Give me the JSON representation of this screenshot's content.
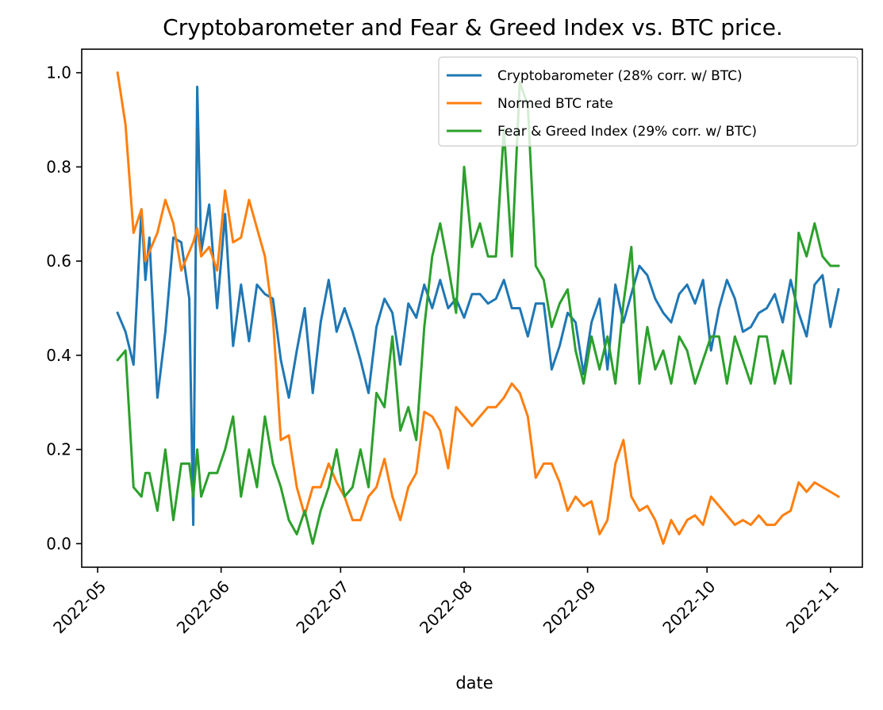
{
  "chart_data": {
    "type": "line",
    "title": "Cryptobarometer and Fear & Greed Index vs. BTC price.",
    "xlabel": "date",
    "ylabel": "",
    "xlim": [
      "2022-04-27",
      "2022-11-09"
    ],
    "ylim": [
      -0.05,
      1.05
    ],
    "grid": false,
    "legend_position": "upper right",
    "x_ticks": [
      "2022-05-01",
      "2022-06-01",
      "2022-07-01",
      "2022-08-01",
      "2022-09-01",
      "2022-10-01",
      "2022-11-01"
    ],
    "x_tick_labels": [
      "2022-05",
      "2022-06",
      "2022-07",
      "2022-08",
      "2022-09",
      "2022-10",
      "2022-11"
    ],
    "y_ticks": [
      0.0,
      0.2,
      0.4,
      0.6,
      0.8,
      1.0
    ],
    "y_tick_labels": [
      "0.0",
      "0.2",
      "0.4",
      "0.6",
      "0.8",
      "1.0"
    ],
    "series": [
      {
        "name": "Cryptobarometer (28% corr. w/ BTC)",
        "color": "#1f77b4",
        "x": [
          "2022-05-06",
          "2022-05-08",
          "2022-05-10",
          "2022-05-12",
          "2022-05-13",
          "2022-05-14",
          "2022-05-16",
          "2022-05-18",
          "2022-05-20",
          "2022-05-22",
          "2022-05-24",
          "2022-05-25",
          "2022-05-26",
          "2022-05-27",
          "2022-05-29",
          "2022-05-31",
          "2022-06-02",
          "2022-06-04",
          "2022-06-06",
          "2022-06-08",
          "2022-06-10",
          "2022-06-12",
          "2022-06-14",
          "2022-06-16",
          "2022-06-18",
          "2022-06-20",
          "2022-06-22",
          "2022-06-24",
          "2022-06-26",
          "2022-06-28",
          "2022-06-30",
          "2022-07-02",
          "2022-07-04",
          "2022-07-06",
          "2022-07-08",
          "2022-07-10",
          "2022-07-12",
          "2022-07-14",
          "2022-07-16",
          "2022-07-18",
          "2022-07-20",
          "2022-07-22",
          "2022-07-24",
          "2022-07-26",
          "2022-07-28",
          "2022-07-30",
          "2022-08-01",
          "2022-08-03",
          "2022-08-05",
          "2022-08-07",
          "2022-08-09",
          "2022-08-11",
          "2022-08-13",
          "2022-08-15",
          "2022-08-17",
          "2022-08-19",
          "2022-08-21",
          "2022-08-23",
          "2022-08-25",
          "2022-08-27",
          "2022-08-29",
          "2022-08-31",
          "2022-09-02",
          "2022-09-04",
          "2022-09-06",
          "2022-09-08",
          "2022-09-10",
          "2022-09-12",
          "2022-09-14",
          "2022-09-16",
          "2022-09-18",
          "2022-09-20",
          "2022-09-22",
          "2022-09-24",
          "2022-09-26",
          "2022-09-28",
          "2022-09-30",
          "2022-10-02",
          "2022-10-04",
          "2022-10-06",
          "2022-10-08",
          "2022-10-10",
          "2022-10-12",
          "2022-10-14",
          "2022-10-16",
          "2022-10-18",
          "2022-10-20",
          "2022-10-22",
          "2022-10-24",
          "2022-10-26",
          "2022-10-28",
          "2022-10-30",
          "2022-11-01",
          "2022-11-03"
        ],
        "y": [
          0.49,
          0.45,
          0.38,
          0.71,
          0.56,
          0.65,
          0.31,
          0.45,
          0.65,
          0.64,
          0.52,
          0.04,
          0.97,
          0.62,
          0.72,
          0.5,
          0.7,
          0.42,
          0.55,
          0.43,
          0.55,
          0.53,
          0.52,
          0.39,
          0.31,
          0.41,
          0.5,
          0.32,
          0.47,
          0.56,
          0.45,
          0.5,
          0.45,
          0.39,
          0.32,
          0.46,
          0.52,
          0.49,
          0.38,
          0.51,
          0.48,
          0.55,
          0.5,
          0.56,
          0.5,
          0.52,
          0.48,
          0.53,
          0.53,
          0.51,
          0.52,
          0.56,
          0.5,
          0.5,
          0.44,
          0.51,
          0.51,
          0.37,
          0.42,
          0.49,
          0.47,
          0.36,
          0.47,
          0.52,
          0.37,
          0.55,
          0.47,
          0.53,
          0.59,
          0.57,
          0.52,
          0.49,
          0.47,
          0.53,
          0.55,
          0.51,
          0.56,
          0.41,
          0.5,
          0.56,
          0.52,
          0.45,
          0.46,
          0.49,
          0.5,
          0.53,
          0.47,
          0.56,
          0.49,
          0.44,
          0.55,
          0.57,
          0.46,
          0.54
        ]
      },
      {
        "name": "Normed BTC rate",
        "color": "#ff7f0e",
        "x": [
          "2022-05-06",
          "2022-05-08",
          "2022-05-10",
          "2022-05-12",
          "2022-05-13",
          "2022-05-14",
          "2022-05-16",
          "2022-05-18",
          "2022-05-20",
          "2022-05-22",
          "2022-05-24",
          "2022-05-25",
          "2022-05-26",
          "2022-05-27",
          "2022-05-29",
          "2022-05-31",
          "2022-06-02",
          "2022-06-04",
          "2022-06-06",
          "2022-06-08",
          "2022-06-10",
          "2022-06-12",
          "2022-06-14",
          "2022-06-16",
          "2022-06-18",
          "2022-06-20",
          "2022-06-22",
          "2022-06-24",
          "2022-06-26",
          "2022-06-28",
          "2022-06-30",
          "2022-07-02",
          "2022-07-04",
          "2022-07-06",
          "2022-07-08",
          "2022-07-10",
          "2022-07-12",
          "2022-07-14",
          "2022-07-16",
          "2022-07-18",
          "2022-07-20",
          "2022-07-22",
          "2022-07-24",
          "2022-07-26",
          "2022-07-28",
          "2022-07-30",
          "2022-08-01",
          "2022-08-03",
          "2022-08-05",
          "2022-08-07",
          "2022-08-09",
          "2022-08-11",
          "2022-08-13",
          "2022-08-15",
          "2022-08-17",
          "2022-08-19",
          "2022-08-21",
          "2022-08-23",
          "2022-08-25",
          "2022-08-27",
          "2022-08-29",
          "2022-08-31",
          "2022-09-02",
          "2022-09-04",
          "2022-09-06",
          "2022-09-08",
          "2022-09-10",
          "2022-09-12",
          "2022-09-14",
          "2022-09-16",
          "2022-09-18",
          "2022-09-20",
          "2022-09-22",
          "2022-09-24",
          "2022-09-26",
          "2022-09-28",
          "2022-09-30",
          "2022-10-02",
          "2022-10-04",
          "2022-10-06",
          "2022-10-08",
          "2022-10-10",
          "2022-10-12",
          "2022-10-14",
          "2022-10-16",
          "2022-10-18",
          "2022-10-20",
          "2022-10-22",
          "2022-10-24",
          "2022-10-26",
          "2022-10-28",
          "2022-10-30",
          "2022-11-01",
          "2022-11-03"
        ],
        "y": [
          1.0,
          0.89,
          0.66,
          0.71,
          0.6,
          0.62,
          0.66,
          0.73,
          0.68,
          0.58,
          0.62,
          0.64,
          0.67,
          0.61,
          0.63,
          0.58,
          0.75,
          0.64,
          0.65,
          0.73,
          0.67,
          0.61,
          0.48,
          0.22,
          0.23,
          0.12,
          0.06,
          0.12,
          0.12,
          0.17,
          0.13,
          0.1,
          0.05,
          0.05,
          0.1,
          0.12,
          0.18,
          0.1,
          0.05,
          0.12,
          0.15,
          0.28,
          0.27,
          0.24,
          0.16,
          0.29,
          0.27,
          0.25,
          0.27,
          0.29,
          0.29,
          0.31,
          0.34,
          0.32,
          0.27,
          0.14,
          0.17,
          0.17,
          0.13,
          0.07,
          0.1,
          0.08,
          0.09,
          0.02,
          0.05,
          0.17,
          0.22,
          0.1,
          0.07,
          0.08,
          0.05,
          0.0,
          0.05,
          0.02,
          0.05,
          0.06,
          0.04,
          0.1,
          0.08,
          0.06,
          0.04,
          0.05,
          0.04,
          0.06,
          0.04,
          0.04,
          0.06,
          0.07,
          0.13,
          0.11,
          0.13,
          0.12,
          0.11,
          0.1
        ]
      },
      {
        "name": "Fear & Greed Index (29% corr. w/ BTC)",
        "color": "#2ca02c",
        "x": [
          "2022-05-06",
          "2022-05-08",
          "2022-05-10",
          "2022-05-12",
          "2022-05-13",
          "2022-05-14",
          "2022-05-16",
          "2022-05-18",
          "2022-05-20",
          "2022-05-22",
          "2022-05-24",
          "2022-05-25",
          "2022-05-26",
          "2022-05-27",
          "2022-05-29",
          "2022-05-31",
          "2022-06-02",
          "2022-06-04",
          "2022-06-06",
          "2022-06-08",
          "2022-06-10",
          "2022-06-12",
          "2022-06-14",
          "2022-06-16",
          "2022-06-18",
          "2022-06-20",
          "2022-06-22",
          "2022-06-24",
          "2022-06-26",
          "2022-06-28",
          "2022-06-30",
          "2022-07-02",
          "2022-07-04",
          "2022-07-06",
          "2022-07-08",
          "2022-07-10",
          "2022-07-12",
          "2022-07-14",
          "2022-07-16",
          "2022-07-18",
          "2022-07-20",
          "2022-07-22",
          "2022-07-24",
          "2022-07-26",
          "2022-07-28",
          "2022-07-30",
          "2022-08-01",
          "2022-08-03",
          "2022-08-05",
          "2022-08-07",
          "2022-08-09",
          "2022-08-11",
          "2022-08-13",
          "2022-08-15",
          "2022-08-17",
          "2022-08-19",
          "2022-08-21",
          "2022-08-23",
          "2022-08-25",
          "2022-08-27",
          "2022-08-29",
          "2022-08-31",
          "2022-09-02",
          "2022-09-04",
          "2022-09-06",
          "2022-09-08",
          "2022-09-10",
          "2022-09-12",
          "2022-09-14",
          "2022-09-16",
          "2022-09-18",
          "2022-09-20",
          "2022-09-22",
          "2022-09-24",
          "2022-09-26",
          "2022-09-28",
          "2022-09-30",
          "2022-10-02",
          "2022-10-04",
          "2022-10-06",
          "2022-10-08",
          "2022-10-10",
          "2022-10-12",
          "2022-10-14",
          "2022-10-16",
          "2022-10-18",
          "2022-10-20",
          "2022-10-22",
          "2022-10-24",
          "2022-10-26",
          "2022-10-28",
          "2022-10-30",
          "2022-11-01",
          "2022-11-03"
        ],
        "y": [
          0.39,
          0.41,
          0.12,
          0.1,
          0.15,
          0.15,
          0.07,
          0.2,
          0.05,
          0.17,
          0.17,
          0.1,
          0.2,
          0.1,
          0.15,
          0.15,
          0.2,
          0.27,
          0.1,
          0.2,
          0.12,
          0.27,
          0.17,
          0.12,
          0.05,
          0.02,
          0.07,
          0.0,
          0.07,
          0.12,
          0.2,
          0.1,
          0.12,
          0.2,
          0.12,
          0.32,
          0.29,
          0.44,
          0.24,
          0.29,
          0.22,
          0.46,
          0.61,
          0.68,
          0.59,
          0.49,
          0.8,
          0.63,
          0.68,
          0.61,
          0.61,
          0.88,
          0.61,
          0.98,
          0.93,
          0.59,
          0.56,
          0.46,
          0.51,
          0.54,
          0.41,
          0.34,
          0.44,
          0.37,
          0.44,
          0.34,
          0.51,
          0.63,
          0.34,
          0.46,
          0.37,
          0.41,
          0.34,
          0.44,
          0.41,
          0.34,
          0.39,
          0.44,
          0.44,
          0.34,
          0.44,
          0.39,
          0.34,
          0.44,
          0.44,
          0.34,
          0.41,
          0.34,
          0.66,
          0.61,
          0.68,
          0.61,
          0.59,
          0.59
        ]
      }
    ]
  }
}
